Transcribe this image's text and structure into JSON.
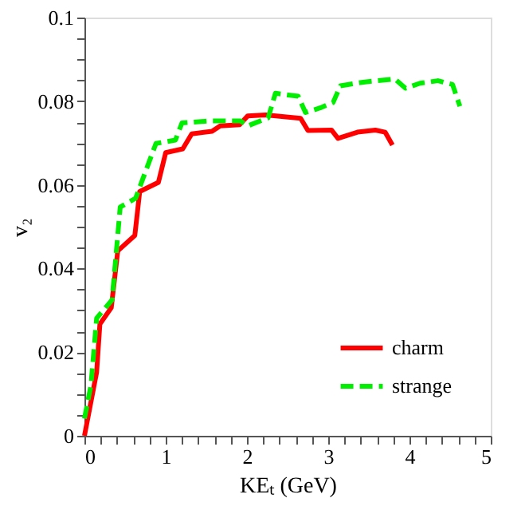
{
  "chart_data": {
    "type": "line",
    "xlabel": "KEₜ (GeV)",
    "ylabel": "v₂",
    "xlim": [
      0,
      5
    ],
    "ylim": [
      0,
      0.1
    ],
    "xticks": [
      0,
      {
        "value": 0.2,
        "label": null
      },
      {
        "value": 0.4,
        "label": null
      },
      {
        "value": 0.6,
        "label": null
      },
      {
        "value": 0.8,
        "label": null
      },
      1,
      {
        "value": 1.2,
        "label": null
      },
      {
        "value": 1.4,
        "label": null
      },
      {
        "value": 1.6,
        "label": null
      },
      {
        "value": 1.8,
        "label": null
      },
      2,
      {
        "value": 2.2,
        "label": null
      },
      {
        "value": 2.4,
        "label": null
      },
      {
        "value": 2.6,
        "label": null
      },
      {
        "value": 2.8,
        "label": null
      },
      3,
      {
        "value": 3.2,
        "label": null
      },
      {
        "value": 3.4,
        "label": null
      },
      {
        "value": 3.6,
        "label": null
      },
      {
        "value": 3.8,
        "label": null
      },
      4,
      {
        "value": 4.2,
        "label": null
      },
      {
        "value": 4.4,
        "label": null
      },
      {
        "value": 4.6,
        "label": null
      },
      {
        "value": 4.8,
        "label": null
      },
      5
    ],
    "yticks": [
      0,
      {
        "value": 0.005,
        "label": null
      },
      {
        "value": 0.01,
        "label": null
      },
      {
        "value": 0.015,
        "label": null
      },
      0.02,
      {
        "value": 0.025,
        "label": null
      },
      {
        "value": 0.03,
        "label": null
      },
      {
        "value": 0.035,
        "label": null
      },
      0.04,
      {
        "value": 0.045,
        "label": null
      },
      {
        "value": 0.05,
        "label": null
      },
      {
        "value": 0.055,
        "label": null
      },
      0.06,
      {
        "value": 0.065,
        "label": null
      },
      {
        "value": 0.07,
        "label": null
      },
      {
        "value": 0.075,
        "label": null
      },
      0.08,
      {
        "value": 0.085,
        "label": null
      },
      {
        "value": 0.09,
        "label": null
      },
      {
        "value": 0.095,
        "label": null
      },
      0.1
    ],
    "grid": false,
    "legend": "bottom right",
    "marker": "none",
    "series": [
      {
        "name": "charm",
        "color": "#ff0000",
        "line_style": "solid",
        "x": [
          0,
          0.15,
          0.19,
          0.33,
          0.41,
          0.62,
          0.68,
          0.91,
          1.0,
          1.21,
          1.32,
          1.57,
          1.67,
          1.91,
          2.01,
          2.23,
          2.66,
          2.75,
          3.04,
          3.12,
          3.36,
          3.58,
          3.7,
          3.79
        ],
        "values": [
          0,
          0.0152,
          0.0267,
          0.0306,
          0.0442,
          0.0479,
          0.0584,
          0.0606,
          0.0677,
          0.0686,
          0.0722,
          0.0728,
          0.0741,
          0.0744,
          0.0765,
          0.0767,
          0.0759,
          0.073,
          0.0731,
          0.0711,
          0.0726,
          0.0731,
          0.0726,
          0.0695
        ]
      },
      {
        "name": "strange",
        "color": "#00ee00",
        "line_style": "dashed",
        "x": [
          0,
          0.08,
          0.15,
          0.34,
          0.44,
          0.63,
          0.88,
          1.12,
          1.2,
          1.55,
          1.92,
          2.01,
          2.26,
          2.35,
          2.5,
          2.63,
          2.72,
          2.9,
          3.06,
          3.15,
          3.45,
          3.82,
          3.95,
          4.13,
          4.35,
          4.53,
          4.62
        ],
        "values": [
          0.0041,
          0.0121,
          0.0281,
          0.0325,
          0.0547,
          0.0568,
          0.0699,
          0.0707,
          0.0748,
          0.0753,
          0.0753,
          0.0741,
          0.076,
          0.0819,
          0.0815,
          0.0812,
          0.0773,
          0.0784,
          0.0797,
          0.0837,
          0.0846,
          0.0853,
          0.0831,
          0.0843,
          0.0849,
          0.084,
          0.0788
        ]
      }
    ]
  }
}
